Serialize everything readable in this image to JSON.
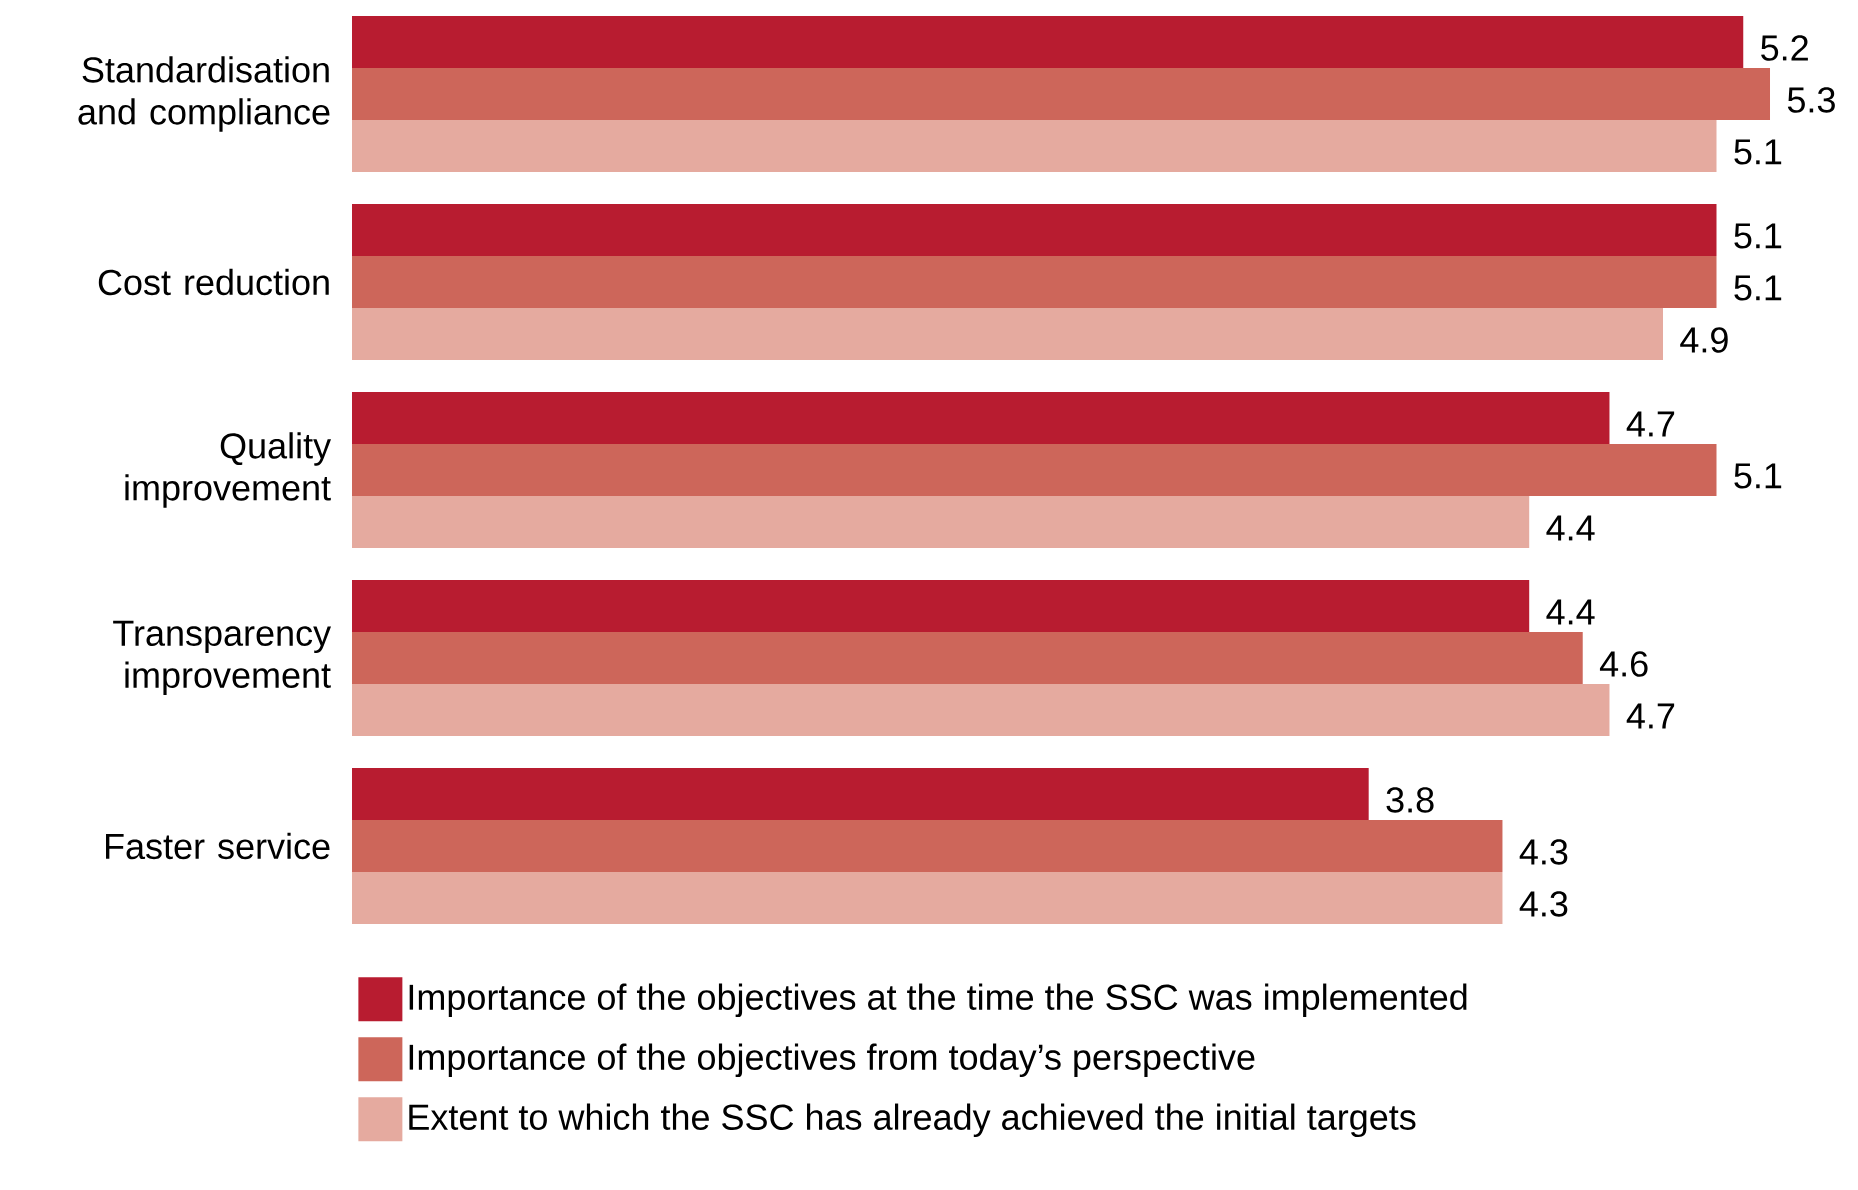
{
  "chart_data": {
    "type": "bar",
    "orientation": "horizontal",
    "categories": [
      "Standardisation and compliance",
      "Cost reduction",
      "Quality improvement",
      "Transparency improvement",
      "Faster service"
    ],
    "series": [
      {
        "name": "Importance of the objectives at the time the SSC was implemented",
        "color": "#b81c30",
        "values": [
          5.2,
          5.1,
          4.7,
          4.4,
          3.8
        ]
      },
      {
        "name": "Importance of the objectives from today’s perspective",
        "color": "#cd665a",
        "values": [
          5.3,
          5.1,
          5.1,
          4.6,
          4.3
        ]
      },
      {
        "name": "Extent to which the SSC has already achieved the initial targets",
        "color": "#e5aa9f",
        "values": [
          5.1,
          4.9,
          4.4,
          4.7,
          4.3
        ]
      }
    ],
    "data_labels": true,
    "legend": "bottom"
  }
}
